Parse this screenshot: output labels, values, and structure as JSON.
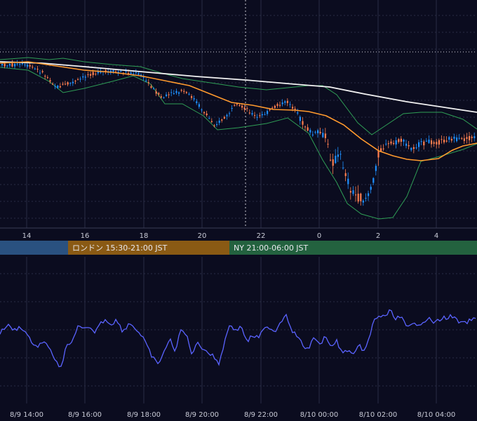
{
  "chart_data": [
    {
      "type": "candlestick",
      "name": "",
      "x_ticks": [
        "14",
        "16",
        "18",
        "20",
        "22",
        "0",
        "2",
        "4"
      ],
      "overlays": [
        "sma-white",
        "ema-orange",
        "bollinger-green"
      ],
      "colors": {
        "up": "#1e90ff",
        "down": "#ff7f50",
        "sma": "#f2f2f2",
        "ema": "#ff9a2e",
        "band": "#2f9e56",
        "grid": "#2a2c44",
        "bg": "#0b0c1f"
      }
    },
    {
      "type": "line",
      "name": "",
      "x_ticks": [
        "8/9 14:00",
        "8/9 16:00",
        "8/9 18:00",
        "8/9 20:00",
        "8/9 22:00",
        "8/10 00:00",
        "8/10 02:00",
        "8/10 04:00"
      ],
      "color": "#5a63ff"
    }
  ],
  "sessions": [
    {
      "label": "",
      "color": "#2a5180"
    },
    {
      "label": "ロンドン 15:30-21:00 JST",
      "color": "#8a5a14"
    },
    {
      "label": "NY 21:00-06:00 JST",
      "color": "#23623f"
    }
  ]
}
